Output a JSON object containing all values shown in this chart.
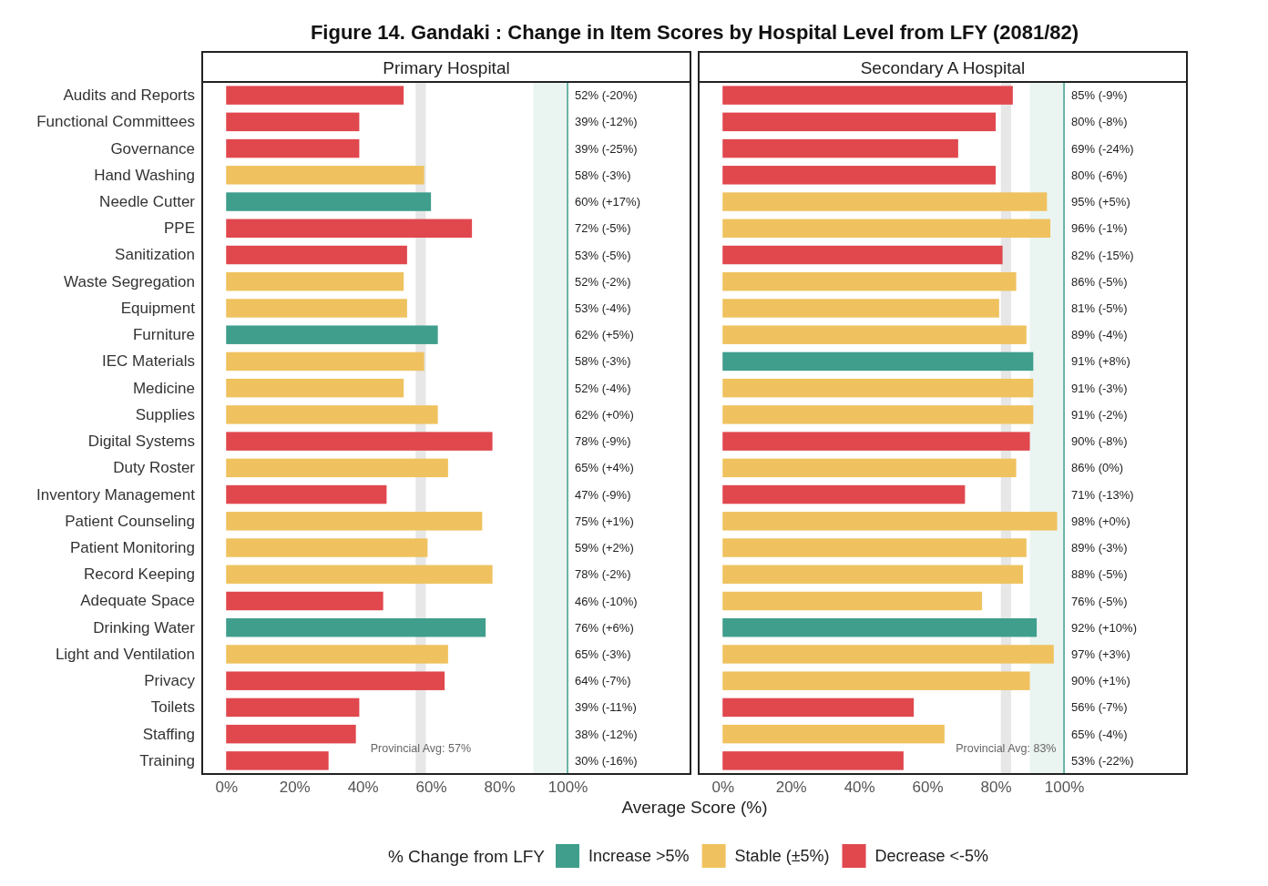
{
  "chart_data": [
    {
      "type": "bar",
      "orientation": "horizontal",
      "stacked": true,
      "title": "Figure 14. Gandaki : Change in Item Scores by Hospital Level from LFY (2081/82)",
      "subtitle": "Primary Hospital",
      "xlabel": "Average Score (%)",
      "legend_title": "% Change from LFY",
      "legend": "bottom",
      "categories": [
        "Audits and Reports",
        "Functional Committees",
        "Governance",
        "Hand Washing",
        "Needle Cutter",
        "PPE",
        "Sanitization",
        "Waste Segregation",
        "Equipment",
        "Furniture",
        "IEC Materials",
        "Medicine",
        "Supplies",
        "Digital Systems",
        "Duty Roster",
        "Inventory Management",
        "Patient Counseling",
        "Patient Monitoring",
        "Record Keeping",
        "Adequate Space",
        "Drinking Water",
        "Light and Ventilation",
        "Privacy",
        "Toilets",
        "Staffing",
        "Training"
      ],
      "series": [
        {
          "name": "Increase >5%",
          "color": "#3f9e8c",
          "values": [
            null,
            null,
            null,
            null,
            60,
            null,
            null,
            null,
            null,
            62,
            null,
            null,
            null,
            null,
            null,
            null,
            null,
            null,
            null,
            null,
            76,
            null,
            null,
            null,
            null,
            null
          ]
        },
        {
          "name": "Stable (±5%)",
          "color": "#efc25f",
          "values": [
            null,
            null,
            null,
            58,
            null,
            null,
            null,
            52,
            53,
            null,
            58,
            52,
            62,
            null,
            65,
            null,
            75,
            59,
            78,
            null,
            null,
            65,
            null,
            null,
            null,
            null
          ]
        },
        {
          "name": "Decrease <-5%",
          "color": "#e0484e",
          "values": [
            52,
            39,
            39,
            null,
            null,
            72,
            53,
            null,
            null,
            null,
            null,
            null,
            null,
            78,
            null,
            47,
            null,
            null,
            null,
            46,
            null,
            null,
            64,
            39,
            38,
            30
          ]
        }
      ],
      "value_labels": [
        "52% (-20%)",
        "39% (-12%)",
        "39% (-25%)",
        "58% (-3%)",
        "60% (+17%)",
        "72% (-5%)",
        "53% (-5%)",
        "52% (-2%)",
        "53% (-4%)",
        "62% (+5%)",
        "58% (-3%)",
        "52% (-4%)",
        "62% (+0%)",
        "78% (-9%)",
        "65% (+4%)",
        "47% (-9%)",
        "75% (+1%)",
        "59% (+2%)",
        "78% (-2%)",
        "46% (-10%)",
        "76% (+6%)",
        "65% (-3%)",
        "64% (-7%)",
        "39% (-11%)",
        "38% (-12%)",
        "30% (-16%)"
      ],
      "xlim": [
        -7,
        136
      ],
      "xticks": [
        {
          "value": 0,
          "label": "0%"
        },
        {
          "value": 20,
          "label": "20%"
        },
        {
          "value": 40,
          "label": "40%"
        },
        {
          "value": 60,
          "label": "60%"
        },
        {
          "value": 80,
          "label": "80%"
        },
        {
          "value": 100,
          "label": "100%"
        }
      ],
      "bands": [
        {
          "axis": "x",
          "from": 55.5,
          "to": 58.5,
          "label": "Provincial Avg: 57%",
          "color": "#e4e4e4"
        },
        {
          "axis": "x",
          "from": 90,
          "to": 100,
          "color": "#e8f3f0"
        }
      ],
      "ref_lines": [
        {
          "axis": "x",
          "value": 100,
          "color": "#3f9e8c"
        }
      ]
    },
    {
      "type": "bar",
      "orientation": "horizontal",
      "stacked": true,
      "subtitle": "Secondary A Hospital",
      "tick_labels": "x",
      "legend": false,
      "categories": [
        null,
        null,
        null,
        null,
        null,
        null,
        null,
        null,
        null,
        null,
        null,
        null,
        null,
        null,
        null,
        null,
        null,
        null,
        null,
        null,
        null,
        null,
        null,
        null,
        null,
        null
      ],
      "series": [
        {
          "color": "#3f9e8c",
          "values": [
            null,
            null,
            null,
            null,
            null,
            null,
            null,
            null,
            null,
            null,
            91,
            null,
            null,
            null,
            null,
            null,
            null,
            null,
            null,
            null,
            92,
            null,
            null,
            null,
            null,
            null
          ]
        },
        {
          "color": "#efc25f",
          "values": [
            null,
            null,
            null,
            null,
            95,
            96,
            null,
            86,
            81,
            89,
            null,
            91,
            91,
            null,
            86,
            null,
            98,
            89,
            88,
            76,
            null,
            97,
            90,
            null,
            65,
            null
          ]
        },
        {
          "color": "#e0484e",
          "values": [
            85,
            80,
            69,
            80,
            null,
            null,
            82,
            null,
            null,
            null,
            null,
            null,
            null,
            90,
            null,
            71,
            null,
            null,
            null,
            null,
            null,
            null,
            null,
            56,
            null,
            53
          ]
        }
      ],
      "value_labels": [
        "85% (-9%)",
        "80% (-8%)",
        "69% (-24%)",
        "80% (-6%)",
        "95% (+5%)",
        "96% (-1%)",
        "82% (-15%)",
        "86% (-5%)",
        "81% (-5%)",
        "89% (-4%)",
        "91% (+8%)",
        "91% (-3%)",
        "91% (-2%)",
        "90% (-8%)",
        "86% (0%)",
        "71% (-13%)",
        "98% (+0%)",
        "89% (-3%)",
        "88% (-5%)",
        "76% (-5%)",
        "92% (+10%)",
        "97% (+3%)",
        "90% (+1%)",
        "56% (-7%)",
        "65% (-4%)",
        "53% (-22%)"
      ],
      "xlim": [
        -7,
        136
      ],
      "xticks": [
        {
          "value": 0,
          "label": "0%"
        },
        {
          "value": 20,
          "label": "20%"
        },
        {
          "value": 40,
          "label": "40%"
        },
        {
          "value": 60,
          "label": "60%"
        },
        {
          "value": 80,
          "label": "80%"
        },
        {
          "value": 100,
          "label": "100%"
        }
      ],
      "bands": [
        {
          "axis": "x",
          "from": 81.5,
          "to": 84.5,
          "label": "Provincial Avg: 83%",
          "color": "#e4e4e4"
        },
        {
          "axis": "x",
          "from": 90,
          "to": 100,
          "color": "#e8f3f0"
        }
      ],
      "ref_lines": [
        {
          "axis": "x",
          "value": 100,
          "color": "#3f9e8c"
        }
      ]
    }
  ]
}
